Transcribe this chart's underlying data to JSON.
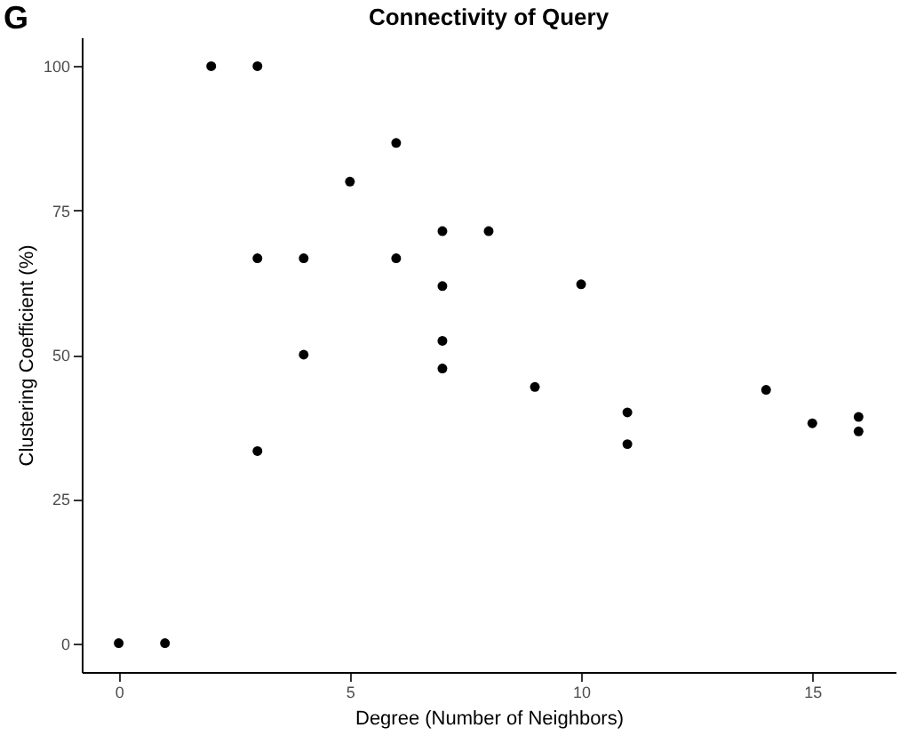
{
  "chart_data": {
    "type": "scatter",
    "title": "Connectivity of Query",
    "xlabel": "Degree (Number of Neighbors)",
    "ylabel": "Clustering Coefficient (%)",
    "annotations": [
      "G"
    ],
    "x": [
      0,
      1,
      2,
      3,
      3,
      3,
      4,
      4,
      5,
      6,
      6,
      7,
      7,
      7,
      7,
      8,
      9,
      10,
      11,
      11,
      14,
      15,
      16,
      16
    ],
    "series": [
      {
        "color": "#000000",
        "values": [
          0,
          0,
          100,
          100,
          66.7,
          33.3,
          66.7,
          50,
          80,
          86.7,
          66.7,
          71.4,
          61.9,
          52.4,
          47.6,
          71.4,
          44.4,
          62.2,
          40,
          34.5,
          43.9,
          38.1,
          39.2,
          36.7
        ]
      }
    ],
    "xlim": [
      -0.8,
      16.8
    ],
    "ylim": [
      -5,
      105
    ],
    "xticks": [
      0,
      5,
      10,
      15
    ],
    "yticks": [
      0,
      25,
      50,
      75,
      100
    ],
    "grid": false,
    "marker": "circle"
  }
}
